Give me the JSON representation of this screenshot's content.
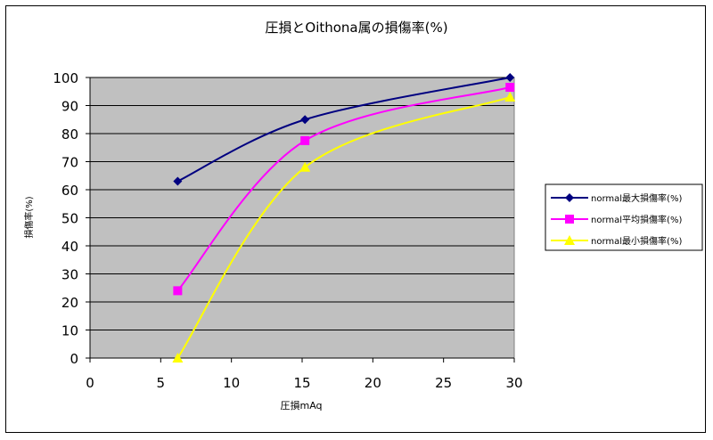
{
  "chart_data": {
    "type": "line",
    "title": "圧損とOithona属の損傷率(%)",
    "xlabel": "圧損mAq",
    "ylabel": "損傷率(%)",
    "xlim": [
      0,
      30
    ],
    "ylim": [
      0,
      100
    ],
    "x_ticks": [
      "0",
      "5",
      "10",
      "15",
      "20",
      "25",
      "30"
    ],
    "y_ticks": [
      "0",
      "10",
      "20",
      "30",
      "40",
      "50",
      "60",
      "70",
      "80",
      "90",
      "100"
    ],
    "grid": "horizontal",
    "plot_background": "#c0c0c0",
    "legend_position": "right",
    "x": [
      6.2,
      15.2,
      29.7
    ],
    "series": [
      {
        "name": "normal最大損傷率(%)",
        "values": [
          63,
          85,
          100
        ],
        "color": "#000080",
        "marker": "diamond"
      },
      {
        "name": "normal平均損傷率(%)",
        "values": [
          24,
          77.5,
          96.5
        ],
        "color": "#ff00ff",
        "marker": "square"
      },
      {
        "name": "normal最小損傷率(%)",
        "values": [
          0,
          68,
          93
        ],
        "color": "#ffff00",
        "marker": "triangle"
      }
    ]
  }
}
